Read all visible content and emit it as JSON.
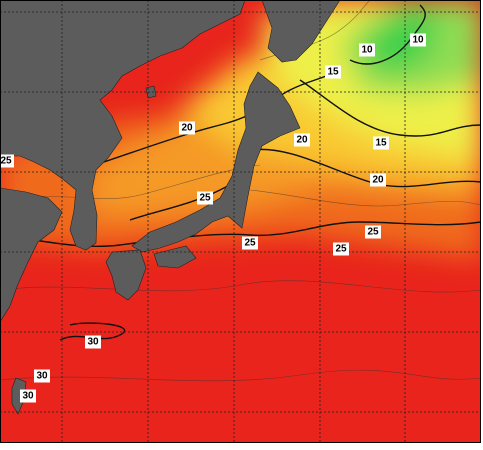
{
  "map": {
    "contour_labels": [
      "10",
      "10",
      "15",
      "20",
      "20",
      "15",
      "20",
      "25",
      "25",
      "25",
      "25",
      "30",
      "30",
      "30",
      "25"
    ]
  }
}
